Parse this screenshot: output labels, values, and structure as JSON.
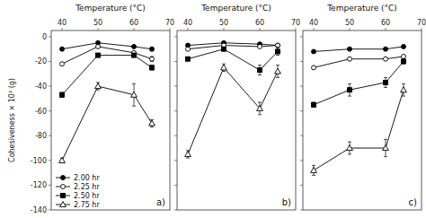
{
  "chart_data": [
    {
      "type": "line",
      "xlabel": "Temperature (°C)",
      "ylabel": "Cohesiveness × 10² (g)",
      "annotation": "a)",
      "x": [
        40,
        50,
        60,
        65
      ],
      "xlim": [
        37,
        70
      ],
      "xticks": [
        40,
        50,
        60,
        70
      ],
      "ylim": [
        -140,
        5
      ],
      "yticks": [
        0,
        -20,
        -40,
        -60,
        -80,
        -100,
        -120,
        -140
      ],
      "grid": false,
      "legend": "lower left",
      "series": [
        {
          "name": "2.00 hr",
          "color": "black",
          "marker": "circle",
          "values": [
            -10,
            -5,
            -8,
            -10
          ],
          "yerr": [
            0.5,
            0.5,
            1.0,
            1.5
          ]
        },
        {
          "name": "2.25 hr",
          "color": "black",
          "marker": "circle-open",
          "values": [
            -22,
            -8,
            -13,
            -18
          ],
          "yerr": [
            1.0,
            1.0,
            1.0,
            2.0
          ]
        },
        {
          "name": "2.50 hr",
          "color": "black",
          "marker": "square",
          "values": [
            -47,
            -15,
            -15,
            -25
          ],
          "yerr": [
            2.0,
            1.0,
            1.0,
            2.0
          ]
        },
        {
          "name": "2.75 hr",
          "color": "black",
          "marker": "triangle-open",
          "values": [
            -100,
            -40,
            -47,
            -70
          ],
          "yerr": [
            2.0,
            3.0,
            9.0,
            3.0
          ]
        }
      ]
    },
    {
      "type": "line",
      "xlabel": "Temperature (°C)",
      "annotation": "b)",
      "x": [
        40,
        50,
        60,
        65
      ],
      "xlim": [
        37,
        70
      ],
      "xticks": [
        40,
        50,
        60,
        70
      ],
      "ylim": [
        -140,
        5
      ],
      "yticks": [
        0,
        -20,
        -40,
        -60,
        -80,
        -100,
        -120,
        -140
      ],
      "grid": false,
      "tick_labels": "x",
      "series": [
        {
          "color": "black",
          "marker": "circle",
          "values": [
            -7,
            -5,
            -6,
            -7
          ],
          "yerr": [
            0.5,
            0.5,
            0.5,
            0.5
          ]
        },
        {
          "color": "black",
          "marker": "circle-open",
          "values": [
            -10,
            -7,
            -8,
            -7
          ],
          "yerr": [
            0.5,
            0.5,
            0.5,
            0.5
          ]
        },
        {
          "color": "black",
          "marker": "square",
          "values": [
            -18,
            -10,
            -27,
            -12
          ],
          "yerr": [
            1.0,
            1.0,
            4.0,
            3.0
          ]
        },
        {
          "color": "black",
          "marker": "triangle-open",
          "values": [
            -95,
            -25,
            -58,
            -28
          ],
          "yerr": [
            3.0,
            3.0,
            5.0,
            5.0
          ]
        }
      ]
    },
    {
      "type": "line",
      "xlabel": "Temperature (°C)",
      "annotation": "c)",
      "x": [
        40,
        50,
        60,
        65
      ],
      "xlim": [
        37,
        70
      ],
      "xticks": [
        40,
        50,
        60,
        70
      ],
      "ylim": [
        -140,
        5
      ],
      "yticks": [
        0,
        -20,
        -40,
        -60,
        -80,
        -100,
        -120,
        -140
      ],
      "grid": false,
      "tick_labels": "x",
      "series": [
        {
          "color": "black",
          "marker": "circle",
          "values": [
            -12,
            -10,
            -10,
            -8
          ],
          "yerr": [
            0.5,
            0.5,
            0.5,
            0.5
          ]
        },
        {
          "color": "black",
          "marker": "circle-open",
          "values": [
            -25,
            -18,
            -18,
            -16
          ],
          "yerr": [
            1.0,
            1.0,
            1.0,
            1.0
          ]
        },
        {
          "color": "black",
          "marker": "square",
          "values": [
            -55,
            -43,
            -37,
            -20
          ],
          "yerr": [
            2.0,
            5.0,
            4.0,
            2.0
          ]
        },
        {
          "color": "black",
          "marker": "triangle-open",
          "values": [
            -108,
            -90,
            -90,
            -43
          ],
          "yerr": [
            4.0,
            5.0,
            7.0,
            5.0
          ]
        }
      ]
    }
  ]
}
